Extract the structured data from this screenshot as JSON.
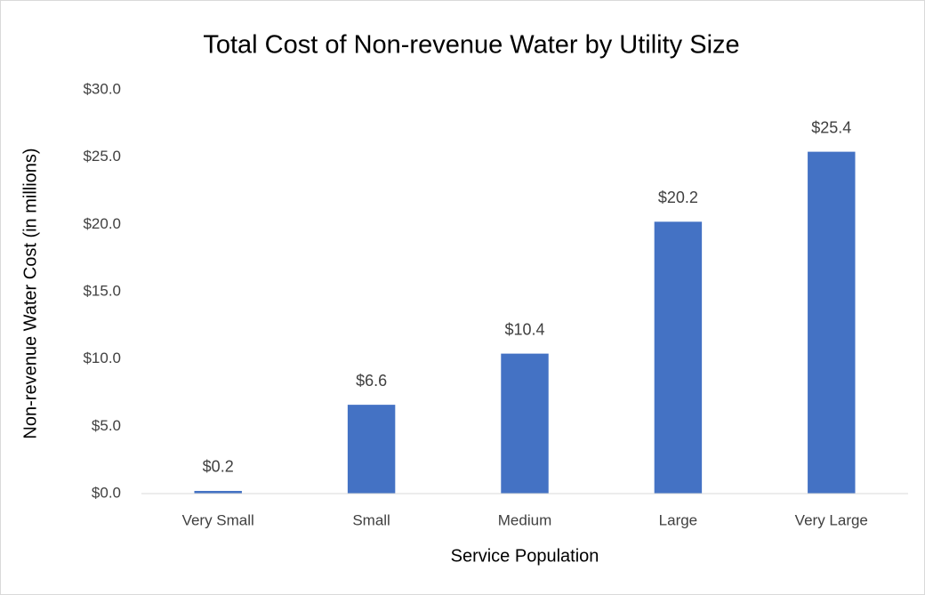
{
  "chart_data": {
    "type": "bar",
    "title": "Total Cost of Non-revenue Water by Utility Size",
    "x_label": "Service Population",
    "y_label": "Non-revenue Water Cost (in millions)",
    "categories": [
      "Very Small",
      "Small",
      "Medium",
      "Large",
      "Very Large"
    ],
    "values": [
      0.2,
      6.6,
      10.4,
      20.2,
      25.4
    ],
    "value_labels": [
      "$0.2",
      "$6.6",
      "$10.4",
      "$20.2",
      "$25.4"
    ],
    "color": "#4472c4",
    "ylim": [
      0,
      30
    ],
    "yticks": [
      {
        "value": 0,
        "label": "$0.0"
      },
      {
        "value": 5,
        "label": "$5.0"
      },
      {
        "value": 10,
        "label": "$10.0"
      },
      {
        "value": 15,
        "label": "$15.0"
      },
      {
        "value": 20,
        "label": "$20.0"
      },
      {
        "value": 25,
        "label": "$25.0"
      },
      {
        "value": 30,
        "label": "$30.0"
      }
    ],
    "grid": false
  }
}
